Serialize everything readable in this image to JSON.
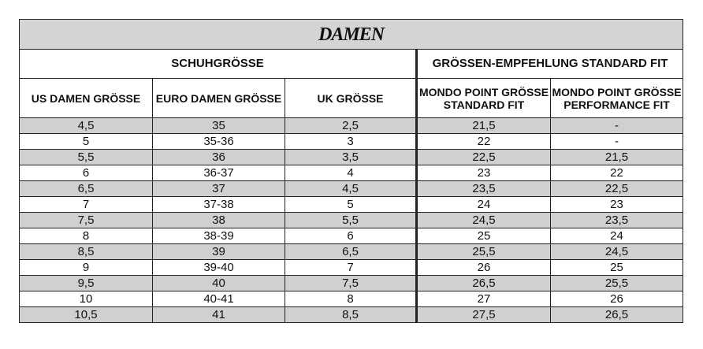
{
  "title": "DAMEN",
  "groups": [
    "SCHUHGRÖSSE",
    "GRÖSSEN-EMPFEHLUNG STANDARD FIT"
  ],
  "columns": [
    "US DAMEN GRÖSSE",
    "EURO DAMEN GRÖSSE",
    "UK GRÖSSE",
    "MONDO POINT GRÖSSE STANDARD FIT",
    "MONDO POINT GRÖSSE PERFORMANCE FIT"
  ],
  "rows": [
    [
      "4,5",
      "35",
      "2,5",
      "21,5",
      "-"
    ],
    [
      "5",
      "35-36",
      "3",
      "22",
      "-"
    ],
    [
      "5,5",
      "36",
      "3,5",
      "22,5",
      "21,5"
    ],
    [
      "6",
      "36-37",
      "4",
      "23",
      "22"
    ],
    [
      "6,5",
      "37",
      "4,5",
      "23,5",
      "22,5"
    ],
    [
      "7",
      "37-38",
      "5",
      "24",
      "23"
    ],
    [
      "7,5",
      "38",
      "5,5",
      "24,5",
      "23,5"
    ],
    [
      "8",
      "38-39",
      "6",
      "25",
      "24"
    ],
    [
      "8,5",
      "39",
      "6,5",
      "25,5",
      "24,5"
    ],
    [
      "9",
      "39-40",
      "7",
      "26",
      "25"
    ],
    [
      "9,5",
      "40",
      "7,5",
      "26,5",
      "25,5"
    ],
    [
      "10",
      "40-41",
      "8",
      "27",
      "26"
    ],
    [
      "10,5",
      "41",
      "8,5",
      "27,5",
      "26,5"
    ]
  ]
}
